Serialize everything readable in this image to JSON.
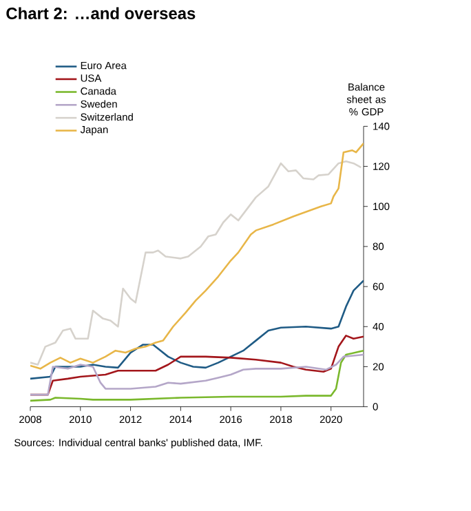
{
  "chart_data": {
    "type": "line",
    "title": "Chart 2:  …and overseas",
    "ylabel": "Balance sheet as % GDP",
    "annotations": [
      "Sources:  Individual central banks' published data, IMF."
    ],
    "xlim": [
      2008,
      2021.3
    ],
    "xticks": [
      2008,
      2010,
      2012,
      2014,
      2016,
      2018,
      2020
    ],
    "ylim": [
      0,
      140
    ],
    "yticks": [
      0,
      20,
      40,
      60,
      80,
      100,
      120,
      140
    ],
    "legend": "top left",
    "grid": false,
    "marker": "none",
    "line_style": "solid",
    "series": [
      {
        "name": "Euro Area",
        "color": "#1f5b85",
        "x": [
          2008,
          2008.8,
          2009,
          2010,
          2010.5,
          2011,
          2011.5,
          2012,
          2012.5,
          2012.9,
          2013.5,
          2014,
          2014.5,
          2015,
          2015.5,
          2016,
          2016.5,
          2017,
          2017.5,
          2018,
          2019,
          2019.5,
          2020,
          2020.3,
          2020.6,
          2020.9,
          2021.3
        ],
        "values": [
          14,
          15,
          20,
          20,
          21,
          20,
          19.5,
          27,
          31,
          31,
          25,
          22,
          20,
          19.5,
          22,
          25,
          28,
          33,
          38,
          39.5,
          40,
          39.5,
          39,
          40,
          50,
          58,
          63
        ]
      },
      {
        "name": "USA",
        "color": "#a3161b",
        "x": [
          2008,
          2008.7,
          2008.9,
          2009.5,
          2010,
          2011,
          2011.5,
          2012,
          2013,
          2013.5,
          2014,
          2015,
          2016,
          2017,
          2018,
          2018.5,
          2019,
          2019.7,
          2020,
          2020.3,
          2020.6,
          2020.9,
          2021.3
        ],
        "values": [
          6,
          6,
          13,
          14,
          15,
          16,
          18,
          18,
          18,
          21,
          25,
          25,
          24.5,
          23.5,
          22,
          20,
          18.5,
          17.5,
          19,
          30,
          35.5,
          34,
          35
        ]
      },
      {
        "name": "Canada",
        "color": "#7ab82c",
        "x": [
          2008,
          2008.8,
          2009,
          2010,
          2010.5,
          2012,
          2013,
          2014,
          2016,
          2018,
          2019,
          2020,
          2020.2,
          2020.4,
          2020.6,
          2021.3
        ],
        "values": [
          3,
          3.5,
          4.5,
          4,
          3.5,
          3.5,
          4,
          4.5,
          5,
          5,
          5.5,
          5.5,
          9,
          22,
          26,
          28
        ]
      },
      {
        "name": "Sweden",
        "color": "#b4a6c8",
        "x": [
          2008,
          2008.7,
          2008.9,
          2009.5,
          2010,
          2010.5,
          2010.8,
          2011,
          2012,
          2012.5,
          2013,
          2013.5,
          2014,
          2015,
          2015.5,
          2016,
          2016.5,
          2017,
          2018,
          2019,
          2019.8,
          2020.2,
          2020.5,
          2021.3
        ],
        "values": [
          6,
          6,
          20,
          19,
          21,
          20,
          12,
          9,
          9,
          9.5,
          10,
          12,
          11.5,
          13,
          14.5,
          16,
          18.5,
          19,
          19,
          20,
          18.5,
          21,
          25,
          26
        ]
      },
      {
        "name": "Switzerland",
        "color": "#d6d2cc",
        "x": [
          2008,
          2008.3,
          2008.6,
          2009,
          2009.3,
          2009.6,
          2009.8,
          2010.3,
          2010.5,
          2010.9,
          2011.2,
          2011.5,
          2011.7,
          2012,
          2012.2,
          2012.6,
          2012.9,
          2013.1,
          2013.4,
          2014,
          2014.3,
          2014.8,
          2015.1,
          2015.4,
          2015.7,
          2016,
          2016.3,
          2017,
          2017.5,
          2018,
          2018.3,
          2018.6,
          2018.9,
          2019.3,
          2019.5,
          2019.9,
          2020.3,
          2020.6,
          2020.9,
          2021.2
        ],
        "values": [
          22,
          21,
          30,
          32,
          38,
          39,
          34,
          34,
          48,
          44,
          43,
          40,
          59,
          54,
          52,
          77,
          77,
          78,
          75,
          74,
          75,
          80,
          85,
          86,
          92,
          96,
          93,
          104.5,
          110,
          121.5,
          117.5,
          118,
          114,
          113.5,
          115.5,
          116,
          121.5,
          122.5,
          121.5,
          119.5
        ]
      },
      {
        "name": "Japan",
        "color": "#e8b648",
        "x": [
          2008,
          2008.4,
          2008.8,
          2009.2,
          2009.6,
          2010,
          2010.5,
          2011,
          2011.4,
          2011.8,
          2012.2,
          2012.6,
          2013,
          2013.3,
          2013.7,
          2014.2,
          2014.6,
          2015,
          2015.5,
          2016,
          2016.3,
          2016.8,
          2017,
          2017.7,
          2018.5,
          2019.6,
          2020,
          2020.1,
          2020.3,
          2020.5,
          2020.85,
          2021,
          2021.3
        ],
        "values": [
          20.5,
          19,
          22,
          24.5,
          22,
          24,
          22,
          25,
          28,
          27,
          29,
          30,
          32,
          33,
          40,
          47,
          53,
          58,
          65,
          73,
          77,
          86,
          88,
          91,
          95,
          100,
          101.5,
          105,
          109,
          127,
          128,
          127,
          131.5
        ]
      }
    ]
  }
}
